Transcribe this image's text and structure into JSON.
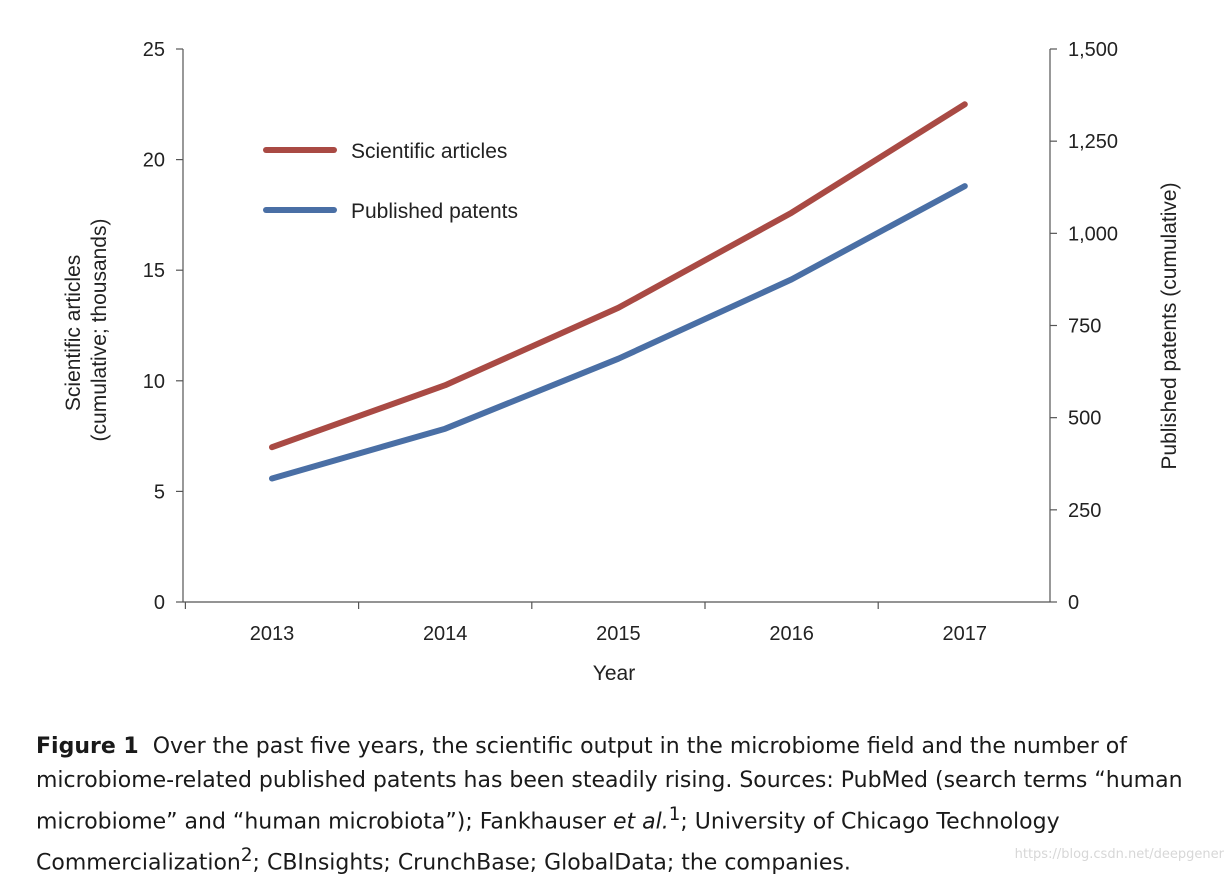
{
  "chart_data": {
    "type": "line",
    "x": [
      "2013",
      "2014",
      "2015",
      "2016",
      "2017"
    ],
    "xlabel": "Year",
    "y_left": {
      "label_lines": [
        "Scientific articles",
        "(cumulative; thousands)"
      ],
      "ylim": [
        0,
        25
      ],
      "ticks": [
        "0",
        "5",
        "10",
        "15",
        "20",
        "25"
      ]
    },
    "y_right": {
      "label": "Published patents (cumulative)",
      "ylim": [
        0,
        1500
      ],
      "ticks": [
        "0",
        "250",
        "500",
        "750",
        "1,000",
        "1,250",
        "1,500"
      ]
    },
    "series": [
      {
        "name": "Scientific articles",
        "axis": "left",
        "color": "#a94a44",
        "values": [
          7.0,
          9.8,
          13.3,
          17.6,
          22.5
        ]
      },
      {
        "name": "Published patents",
        "axis": "right",
        "color": "#4a6fa5",
        "values": [
          335,
          470,
          660,
          875,
          1128
        ]
      }
    ],
    "legend_position": "top-left",
    "grid": false
  },
  "caption": {
    "label": "Figure 1",
    "text_1": "Over the past five years, the scientific output in the microbiome field and the number of microbiome-related published patents has been steadily rising. Sources: PubMed (search terms “human microbiome” and “human microbiota”); Fankhauser ",
    "ref_1_italic": "et al.",
    "ref_1_sup": "1",
    "text_2": "; University of Chicago Technology Commercialization",
    "ref_2_sup": "2",
    "text_3": "; CBInsights; CrunchBase; GlobalData; the companies."
  },
  "watermark": "https://blog.csdn.net/deepgener"
}
